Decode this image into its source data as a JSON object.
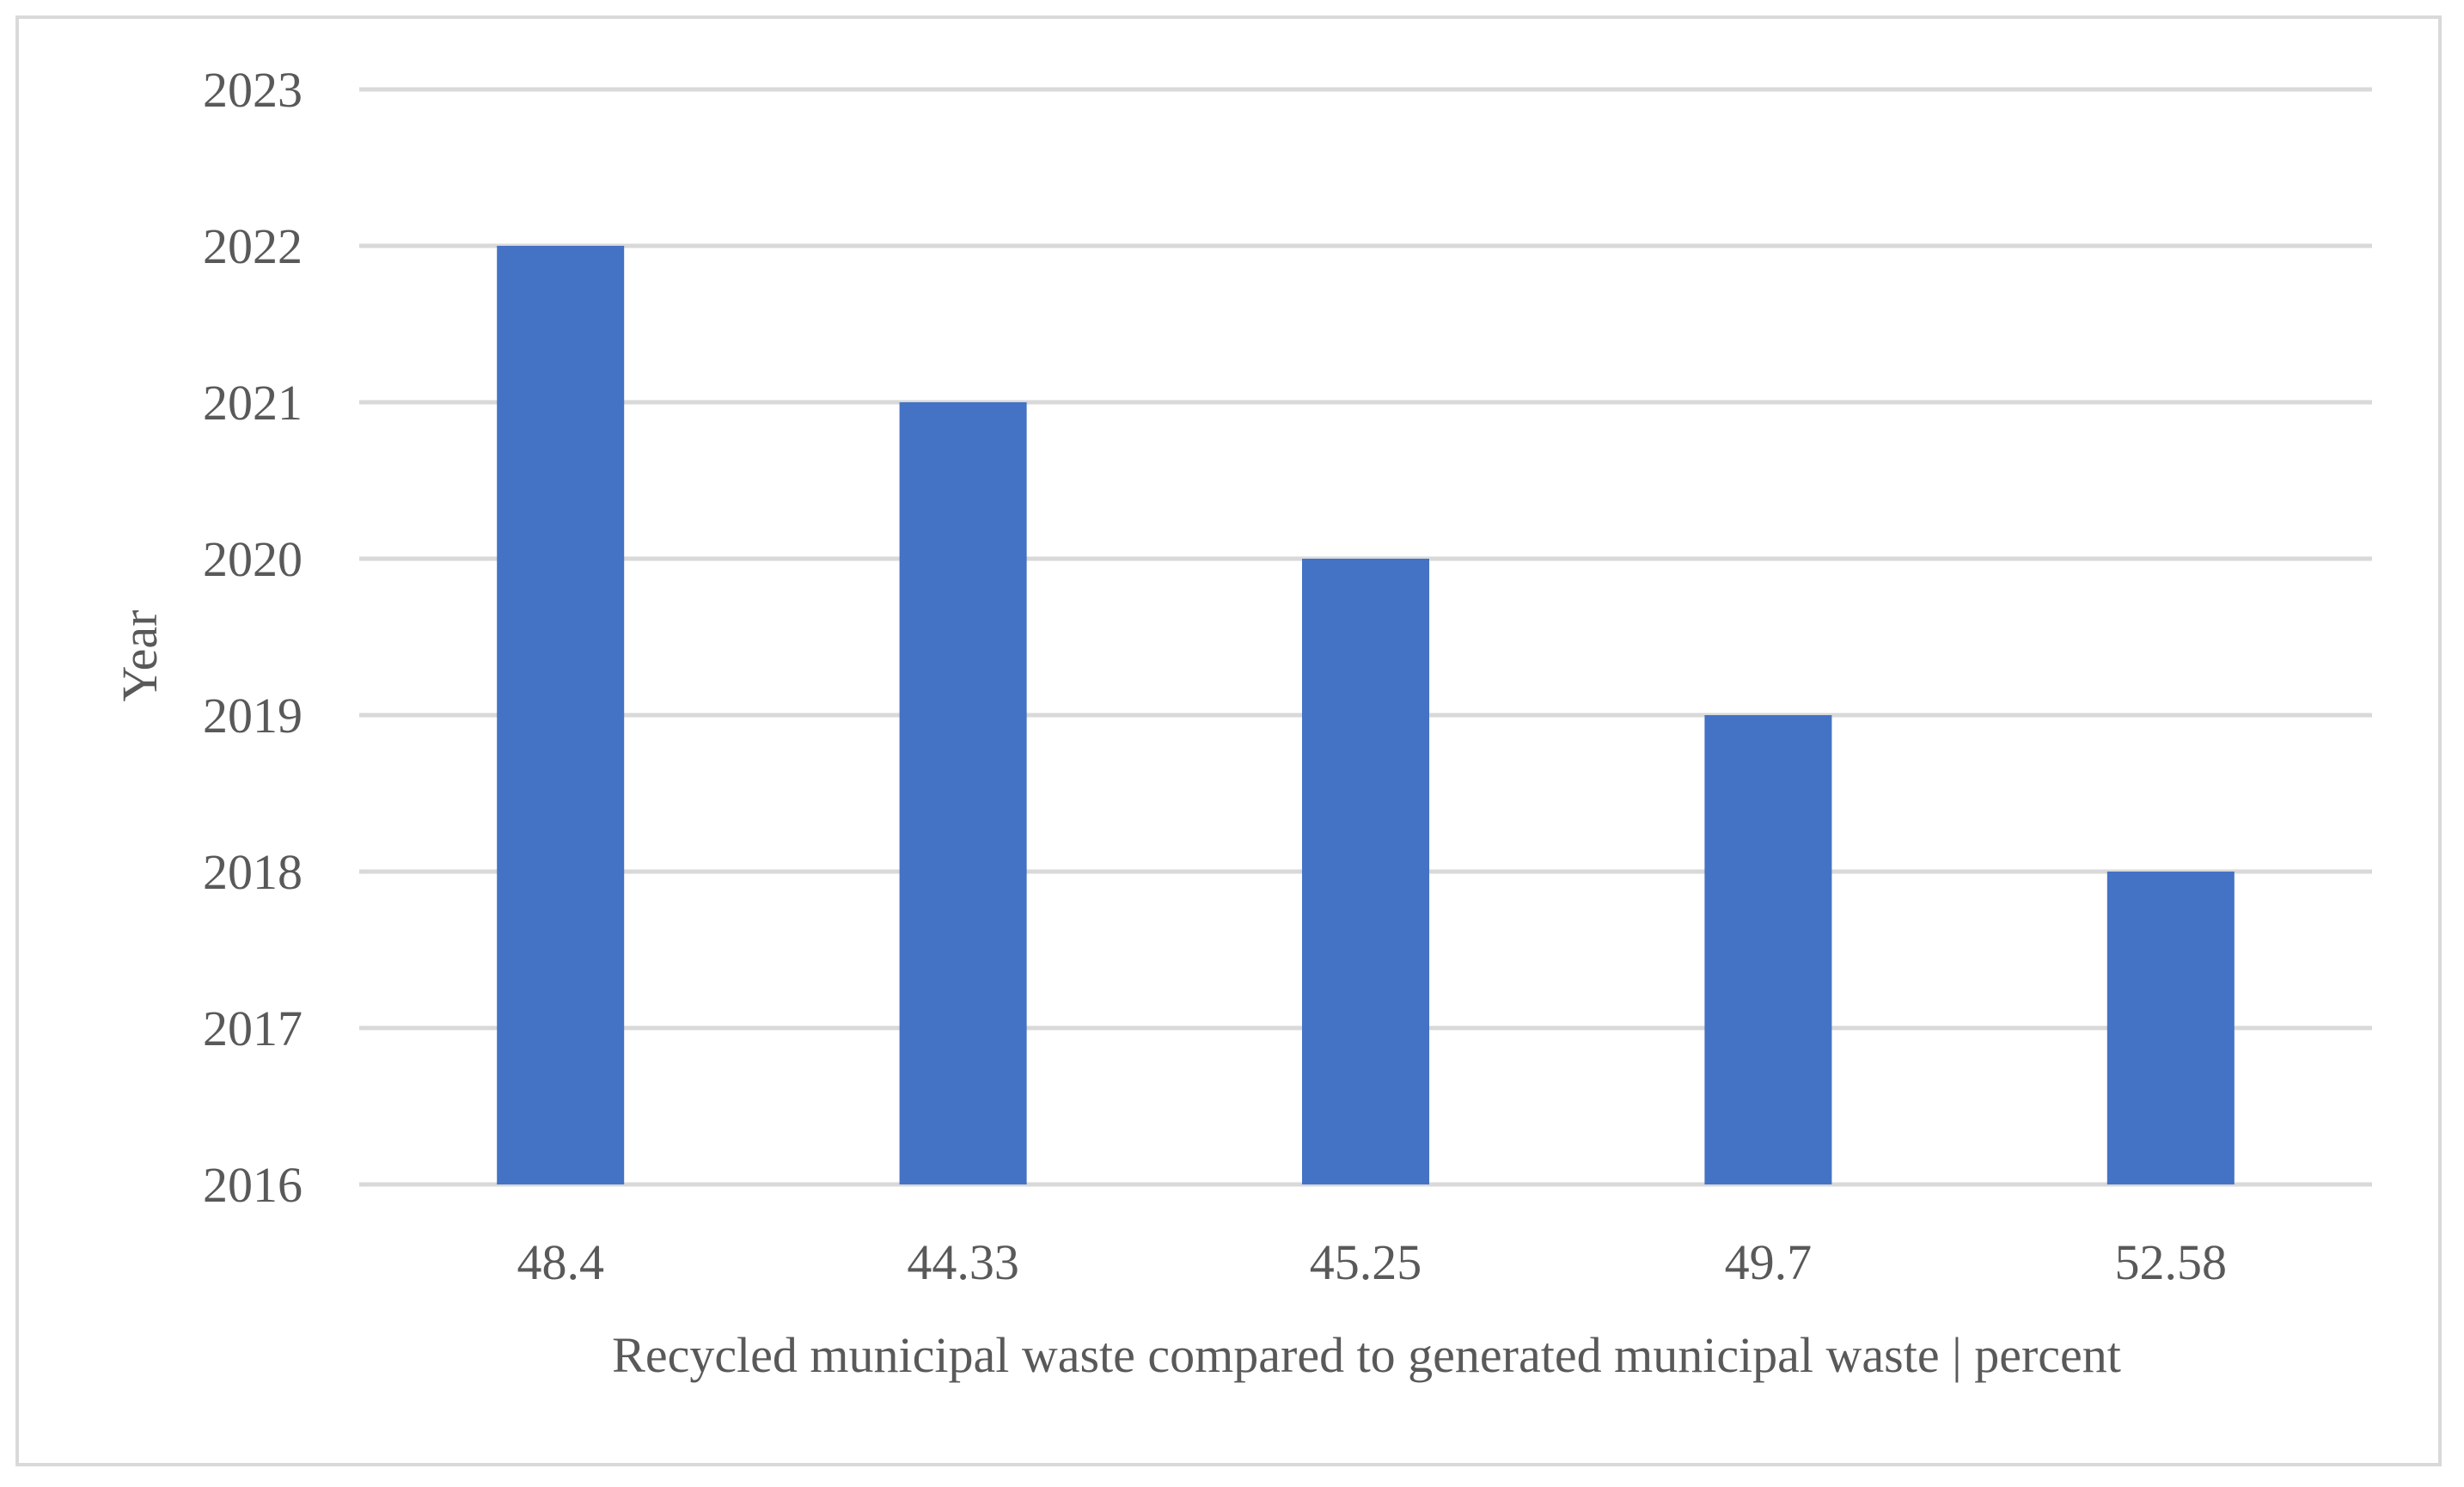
{
  "chart_data": {
    "type": "bar",
    "orientation": "vertical",
    "categories": [
      "48.4",
      "44.33",
      "45.25",
      "49.7",
      "52.58"
    ],
    "values": [
      2022,
      2021,
      2020,
      2019,
      2018
    ],
    "xlabel": "Recycled municipal waste compared to generated municipal waste | percent",
    "ylabel": "Year",
    "ylim": [
      2016,
      2023
    ],
    "yticks": [
      "2016",
      "2017",
      "2018",
      "2019",
      "2020",
      "2021",
      "2022",
      "2023"
    ],
    "grid": true,
    "legend": "none",
    "bar_color": "#4472c4"
  }
}
